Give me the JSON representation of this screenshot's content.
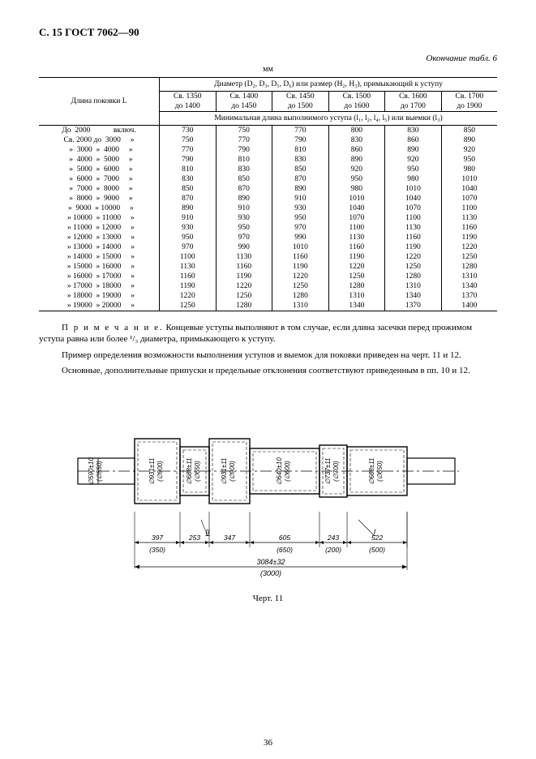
{
  "header": "С. 15 ГОСТ 7062—90",
  "table_caption": "Окончание табл. 6",
  "unit": "мм",
  "diam_header": "Диаметр (D₂, D₃, D₅, D₆) или размер (H₂, H₃), примыкающий к уступу",
  "row_header": "Длина поковки L",
  "min_header": "Минимальная длина выполнимого уступа (l₁, l₂, l₄, l₅) или выемки (l₃)",
  "col_ranges": [
    {
      "a": "Св. 1350",
      "b": "до  1400"
    },
    {
      "a": "Св. 1400",
      "b": "до  1450"
    },
    {
      "a": "Св. 1450",
      "b": "до  1500"
    },
    {
      "a": "Св. 1500",
      "b": "до  1600"
    },
    {
      "a": "Св. 1600",
      "b": "до  1700"
    },
    {
      "a": "Св. 1700",
      "b": "до  1900"
    }
  ],
  "rows": [
    {
      "label": "До  2000            включ.",
      "v": [
        730,
        750,
        770,
        800,
        830,
        850
      ]
    },
    {
      "label": "Св. 2000 до  3000     »",
      "v": [
        750,
        770,
        790,
        830,
        860,
        890
      ]
    },
    {
      "label": "  »  3000  »  4000     »",
      "v": [
        770,
        790,
        810,
        860,
        890,
        920
      ]
    },
    {
      "label": "  »  4000  »  5000     »",
      "v": [
        790,
        810,
        830,
        890,
        920,
        950
      ]
    },
    {
      "label": "  »  5000  »  6000     »",
      "v": [
        810,
        830,
        850,
        920,
        950,
        980
      ]
    },
    {
      "label": "  »  6000  »  7000     »",
      "v": [
        830,
        850,
        870,
        950,
        980,
        1010
      ]
    },
    {
      "label": "  »  7000  »  8000     »",
      "v": [
        850,
        870,
        890,
        980,
        1010,
        1040
      ]
    },
    {
      "label": "  »  8000  »  9000     »",
      "v": [
        870,
        890,
        910,
        1010,
        1040,
        1070
      ]
    },
    {
      "label": "  »  9000  » 10000     »",
      "v": [
        890,
        910,
        930,
        1040,
        1070,
        1100
      ]
    },
    {
      "label": "  » 10000  » 11000     »",
      "v": [
        910,
        930,
        950,
        1070,
        1100,
        1130
      ]
    },
    {
      "label": "  » 11000  » 12000     »",
      "v": [
        930,
        950,
        970,
        1100,
        1130,
        1160
      ]
    },
    {
      "label": "  » 12000  » 13000     »",
      "v": [
        950,
        970,
        990,
        1130,
        1160,
        1190
      ]
    },
    {
      "label": "  » 13000  » 14000     »",
      "v": [
        970,
        990,
        1010,
        1160,
        1190,
        1220
      ]
    },
    {
      "label": "  » 14000  » 15000     »",
      "v": [
        1100,
        1130,
        1160,
        1190,
        1220,
        1250
      ]
    },
    {
      "label": "  » 15000  » 16000     »",
      "v": [
        1130,
        1160,
        1190,
        1220,
        1250,
        1280
      ]
    },
    {
      "label": "  » 16000  » 17000     »",
      "v": [
        1160,
        1190,
        1220,
        1250,
        1280,
        1310
      ]
    },
    {
      "label": "  » 17000  » 18000     »",
      "v": [
        1190,
        1220,
        1250,
        1280,
        1310,
        1340
      ]
    },
    {
      "label": "  » 18000  » 19000     »",
      "v": [
        1220,
        1250,
        1280,
        1310,
        1340,
        1370
      ]
    },
    {
      "label": "  » 19000  » 20000     »",
      "v": [
        1250,
        1280,
        1310,
        1340,
        1370,
        1400
      ]
    }
  ],
  "note_label": "П р и м е ч а н и е.",
  "note_text": " Концевые уступы выполняют в том случае, если длина засечки перед прожимом уступа равна или более ¹/₃ диаметра, примыкающего к уступу.",
  "para1": "Пример определения  возможности  выполнения  уступов и выемок для поковки приведен на черт. 11 и 12.",
  "para2": "Основные, дополнительные припуски и предельные отклонения соответствуют приведенным в пп. 10 и 12.",
  "fig": {
    "caption": "Черт. 11",
    "total_label": "3084±32",
    "total_ref": "(3000)",
    "left_dim": "∅590±10",
    "left_ref": "(∅550)",
    "sections": [
      {
        "len": "397",
        "ref": "(350)",
        "d": "∅931±11",
        "dref": "(∅900)"
      },
      {
        "len": "253",
        "ref": "",
        "d": "∅688±11",
        "dref": "(∅650)"
      },
      {
        "len": "347",
        "ref": "",
        "d": "∅931±11",
        "dref": "(∅900)"
      },
      {
        "len": "605",
        "ref": "(650)",
        "d": "∅640±10",
        "dref": "(∅600)"
      },
      {
        "len": "243",
        "ref": "(200)",
        "d": "∅737±11",
        "dref": "(∅700)"
      },
      {
        "len": "522",
        "ref": "(500)",
        "d": "∅688±11",
        "dref": "(∅650)"
      }
    ],
    "marker1": "I",
    "marker2": "II"
  },
  "page_number": "36",
  "colors": {
    "line": "#000000",
    "bg": "#ffffff"
  }
}
